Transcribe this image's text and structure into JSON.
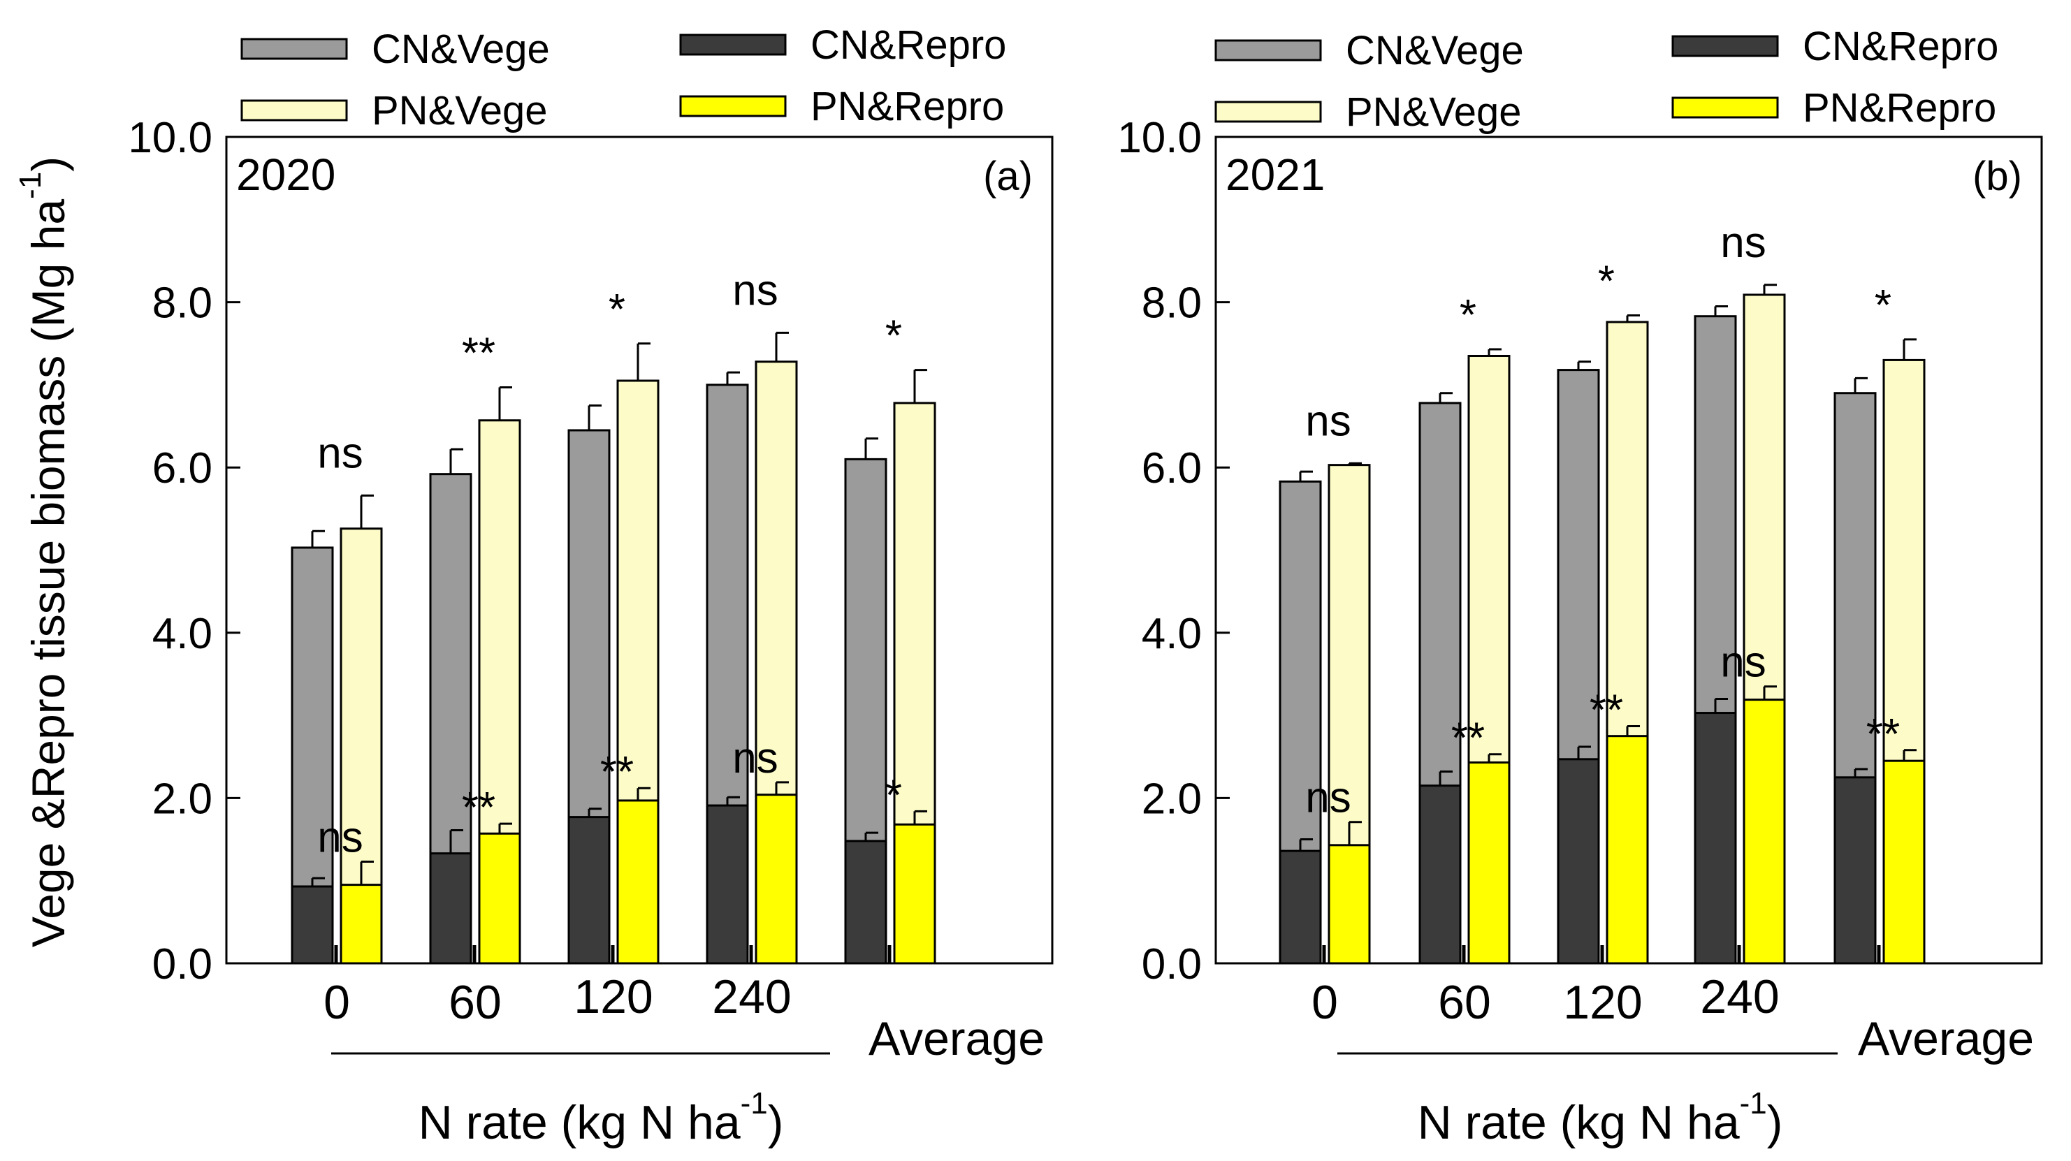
{
  "colors": {
    "CN_Vege": "#9b9b9b",
    "PN_Vege": "#fdfcc9",
    "CN_Repro": "#3b3b3b",
    "PN_Repro": "#ffff00",
    "axis": "#000000"
  },
  "chart_data": [
    {
      "type": "bar",
      "panel": "(a)",
      "year": "2020",
      "categories": [
        "0",
        "60",
        "120",
        "240",
        "Average"
      ],
      "ylim": [
        0,
        10
      ],
      "ylabel": "Vege &Repro tissue biomass (Mg ha",
      "ylabel_sup": "-1",
      "ylabel_end": ")",
      "xlabel": "N rate (kg N ha",
      "xlabel_sup": "-1",
      "xlabel_end": ")",
      "yticks": [
        "0.0",
        "2.0",
        "4.0",
        "6.0",
        "8.0",
        "10.0"
      ],
      "legend": [
        "CN&Vege",
        "CN&Repro",
        "PN&Vege",
        "PN&Repro"
      ],
      "series": [
        {
          "name": "CN&Vege",
          "values": [
            5.03,
            5.92,
            6.45,
            7.0,
            6.1
          ],
          "errors": [
            0.2,
            0.3,
            0.3,
            0.15,
            0.25
          ]
        },
        {
          "name": "PN&Vege",
          "values": [
            5.26,
            6.57,
            7.05,
            7.28,
            6.78
          ],
          "errors": [
            0.4,
            0.4,
            0.45,
            0.35,
            0.4
          ]
        },
        {
          "name": "CN&Repro",
          "values": [
            0.93,
            1.33,
            1.77,
            1.91,
            1.48
          ],
          "errors": [
            0.1,
            0.28,
            0.1,
            0.1,
            0.1
          ]
        },
        {
          "name": "PN&Repro",
          "values": [
            0.95,
            1.57,
            1.97,
            2.04,
            1.68
          ],
          "errors": [
            0.28,
            0.12,
            0.15,
            0.15,
            0.16
          ]
        }
      ],
      "sig_vege": [
        "ns",
        "**",
        "*",
        "ns",
        "*"
      ],
      "sig_repro": [
        "ns",
        "**",
        "**",
        "ns",
        "*"
      ]
    },
    {
      "type": "bar",
      "panel": "(b)",
      "year": "2021",
      "categories": [
        "0",
        "60",
        "120",
        "240",
        "Average"
      ],
      "ylim": [
        0,
        10
      ],
      "xlabel": "N rate (kg N ha",
      "xlabel_sup": "-1",
      "xlabel_end": ")",
      "yticks": [
        "0.0",
        "2.0",
        "4.0",
        "6.0",
        "8.0",
        "10.0"
      ],
      "legend": [
        "CN&Vege",
        "CN&Repro",
        "PN&Vege",
        "PN&Repro"
      ],
      "series": [
        {
          "name": "CN&Vege",
          "values": [
            5.83,
            6.78,
            7.18,
            7.83,
            6.9
          ],
          "errors": [
            0.12,
            0.12,
            0.1,
            0.12,
            0.18
          ]
        },
        {
          "name": "PN&Vege",
          "values": [
            6.03,
            7.35,
            7.76,
            8.09,
            7.3
          ],
          "errors": [
            0.02,
            0.08,
            0.08,
            0.12,
            0.25
          ]
        },
        {
          "name": "CN&Repro",
          "values": [
            1.36,
            2.15,
            2.47,
            3.03,
            2.25
          ],
          "errors": [
            0.14,
            0.17,
            0.15,
            0.17,
            0.1
          ]
        },
        {
          "name": "PN&Repro",
          "values": [
            1.43,
            2.43,
            2.75,
            3.19,
            2.45
          ],
          "errors": [
            0.28,
            0.1,
            0.12,
            0.16,
            0.13
          ]
        }
      ],
      "sig_vege": [
        "ns",
        "*",
        "*",
        "ns",
        "*"
      ],
      "sig_repro": [
        "ns",
        "**",
        "**",
        "ns",
        "**"
      ]
    }
  ]
}
